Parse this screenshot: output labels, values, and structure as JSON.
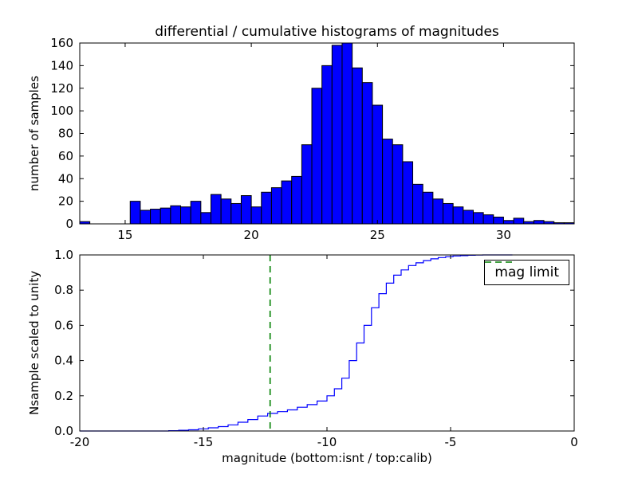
{
  "figure": {
    "background": "#ffffff"
  },
  "chart_data": [
    {
      "type": "bar",
      "title": "differential / cumulative histograms of magnitudes",
      "xlabel": "",
      "ylabel": "number of samples",
      "xlim": [
        13.2,
        32.8
      ],
      "ylim": [
        0,
        160
      ],
      "xticks": [
        15,
        20,
        25,
        30
      ],
      "xtick_labels": [
        "15",
        "20",
        "25",
        "30"
      ],
      "yticks": [
        0,
        20,
        40,
        60,
        80,
        100,
        120,
        140,
        160
      ],
      "ytick_labels": [
        "0",
        "20",
        "40",
        "60",
        "80",
        "100",
        "120",
        "140",
        "160"
      ],
      "grid": false,
      "bar_color": "#0000ff",
      "bar_edge_color": "#000000",
      "bin_start": 13.2,
      "bin_width": 0.4,
      "values": [
        2,
        0,
        0,
        0,
        0,
        20,
        12,
        13,
        14,
        16,
        15,
        20,
        10,
        26,
        22,
        18,
        25,
        15,
        28,
        32,
        38,
        42,
        70,
        120,
        140,
        158,
        160,
        138,
        125,
        105,
        75,
        70,
        55,
        35,
        28,
        22,
        18,
        15,
        12,
        10,
        8,
        6,
        3,
        5,
        2,
        3,
        2,
        1,
        1
      ]
    },
    {
      "type": "line",
      "style": "step",
      "title": "",
      "xlabel": "magnitude (bottom:isnt / top:calib)",
      "ylabel": "Nsample scaled to unity",
      "xlim": [
        -20,
        0
      ],
      "ylim": [
        0,
        1
      ],
      "xticks": [
        -20,
        -15,
        -10,
        -5,
        0
      ],
      "xtick_labels": [
        "-20",
        "-15",
        "-10",
        "-5",
        "0"
      ],
      "yticks": [
        0,
        0.2,
        0.4,
        0.6,
        0.8,
        1.0
      ],
      "ytick_labels": [
        "0.0",
        "0.2",
        "0.4",
        "0.6",
        "0.8",
        "1.0"
      ],
      "grid": false,
      "line_color": "#0000ff",
      "x": [
        -20,
        -16.4,
        -16.0,
        -15.6,
        -15.2,
        -14.8,
        -14.4,
        -14.0,
        -13.6,
        -13.2,
        -12.8,
        -12.4,
        -12.0,
        -11.6,
        -11.2,
        -10.8,
        -10.4,
        -10.0,
        -9.7,
        -9.4,
        -9.1,
        -8.8,
        -8.5,
        -8.2,
        -7.9,
        -7.6,
        -7.3,
        -7.0,
        -6.7,
        -6.4,
        -6.1,
        -5.8,
        -5.5,
        -5.2,
        -4.9,
        -4.6,
        -4.3,
        -4.0,
        -3.7,
        -2.5
      ],
      "y": [
        0,
        0.002,
        0.004,
        0.007,
        0.012,
        0.018,
        0.025,
        0.035,
        0.05,
        0.065,
        0.085,
        0.1,
        0.11,
        0.12,
        0.135,
        0.15,
        0.17,
        0.2,
        0.24,
        0.3,
        0.4,
        0.5,
        0.6,
        0.7,
        0.78,
        0.84,
        0.885,
        0.915,
        0.94,
        0.955,
        0.968,
        0.978,
        0.985,
        0.99,
        0.994,
        0.996,
        0.998,
        0.999,
        1.0,
        1.0
      ],
      "vline": {
        "x": -12.3,
        "color": "#008000",
        "linestyle": "dashed",
        "label": "mag limit"
      },
      "legend": [
        {
          "label": "mag limit",
          "color": "#008000",
          "linestyle": "dashed"
        }
      ],
      "legend_position": "upper right"
    }
  ]
}
